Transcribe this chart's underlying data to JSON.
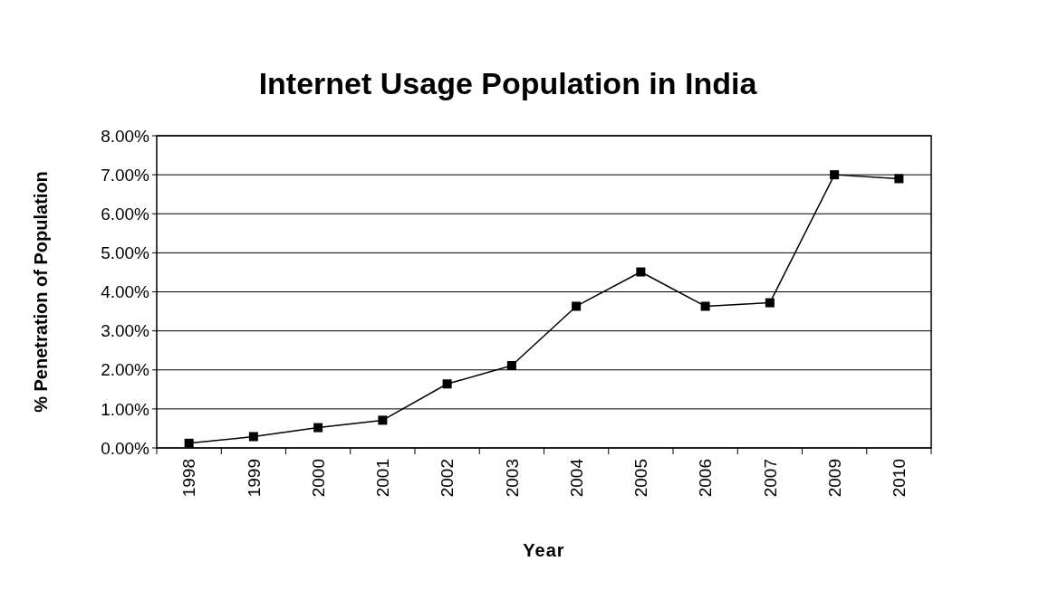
{
  "chart_data": {
    "type": "line",
    "title": "Internet Usage Population in India",
    "xlabel": "Year",
    "ylabel": "% Penetration of Population",
    "categories": [
      "1998",
      "1999",
      "2000",
      "2001",
      "2002",
      "2003",
      "2004",
      "2005",
      "2006",
      "2007",
      "2009",
      "2010"
    ],
    "series": [
      {
        "color": "#000000",
        "values": [
          0.12,
          0.29,
          0.52,
          0.71,
          1.64,
          2.11,
          3.63,
          4.51,
          3.63,
          3.72,
          7.0,
          6.9
        ]
      }
    ],
    "ylim": [
      0,
      8
    ],
    "yticks": [
      {
        "value": 0,
        "label": "0.00%"
      },
      {
        "value": 1,
        "label": "1.00%"
      },
      {
        "value": 2,
        "label": "2.00%"
      },
      {
        "value": 3,
        "label": "3.00%"
      },
      {
        "value": 4,
        "label": "4.00%"
      },
      {
        "value": 5,
        "label": "5.00%"
      },
      {
        "value": 6,
        "label": "6.00%"
      },
      {
        "value": 7,
        "label": "7.00%"
      },
      {
        "value": 8,
        "label": "8.00%"
      }
    ],
    "grid": "y",
    "marker": "square",
    "line_style": "solid"
  }
}
